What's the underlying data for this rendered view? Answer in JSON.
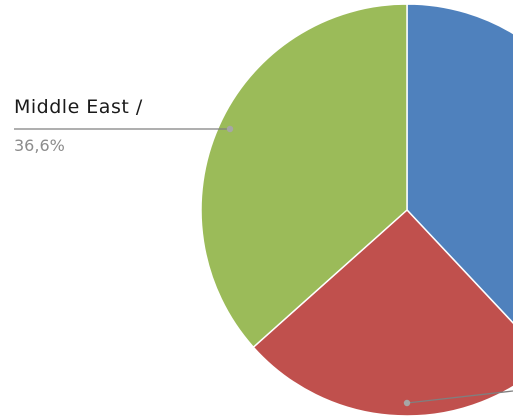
{
  "chart_data": {
    "type": "pie",
    "slices": [
      {
        "name": "",
        "value": 38.0,
        "color": "#4f81bd"
      },
      {
        "name": "",
        "value": 25.4,
        "color": "#c0504d"
      },
      {
        "name": "Middle East",
        "value": 36.6,
        "color": "#9bbb59"
      }
    ],
    "labels": [
      {
        "name": "Middle East /",
        "value": "36,6%"
      }
    ],
    "legend": "none"
  }
}
